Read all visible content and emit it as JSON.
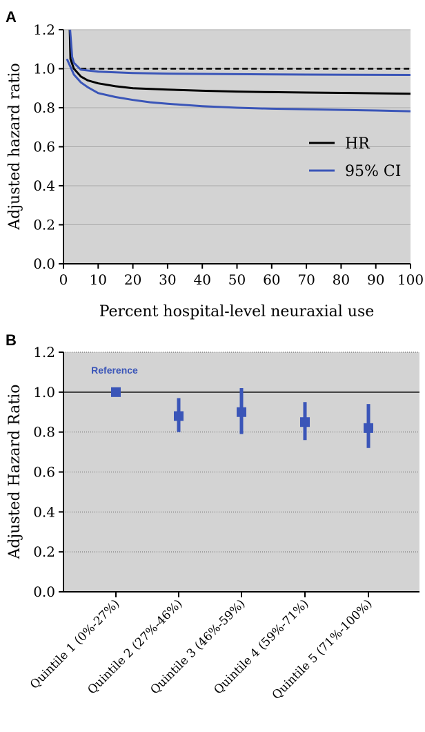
{
  "colors": {
    "plot_bg": "#d3d3d3",
    "grid": "#a9a9a9",
    "hr_line": "#000000",
    "ci_line": "#3a55b8",
    "marker": "#3a55b8",
    "reference_text": "#3a55b8"
  },
  "chart_data": [
    {
      "type": "line",
      "panel_label": "A",
      "title": "",
      "xlabel": "Percent hospital-level neuraxial use",
      "ylabel": "Adjusted hazard ratio",
      "xlim": [
        0,
        100
      ],
      "ylim": [
        0.0,
        1.2
      ],
      "x_ticks": [
        0,
        10,
        20,
        30,
        40,
        50,
        60,
        70,
        80,
        90,
        100
      ],
      "x_tick_labels": [
        "0",
        "10",
        "20",
        "30",
        "40",
        "50",
        "60",
        "70",
        "80",
        "90",
        "100"
      ],
      "y_ticks": [
        0.0,
        0.2,
        0.4,
        0.6,
        0.8,
        1.0,
        1.2
      ],
      "y_tick_labels": [
        "0.0",
        "0.2",
        "0.4",
        "0.6",
        "0.8",
        "1.0",
        "1.2"
      ],
      "grid": "horizontal",
      "legend_position": "right",
      "reference_line": 1.0,
      "series": [
        {
          "name": "HR",
          "role": "estimate",
          "x": [
            1.8,
            2,
            3,
            5,
            7,
            10,
            15,
            20,
            30,
            40,
            50,
            60,
            70,
            80,
            90,
            100
          ],
          "y": [
            1.2,
            1.05,
            1.0,
            0.96,
            0.94,
            0.925,
            0.91,
            0.9,
            0.893,
            0.887,
            0.883,
            0.88,
            0.878,
            0.876,
            0.874,
            0.872
          ]
        },
        {
          "name": "95% CI",
          "role": "upper",
          "x": [
            1.9,
            2.5,
            3,
            5,
            10,
            20,
            30,
            50,
            70,
            100
          ],
          "y": [
            1.2,
            1.06,
            1.03,
            0.995,
            0.985,
            0.978,
            0.975,
            0.972,
            0.97,
            0.968
          ]
        },
        {
          "name": "95% CI",
          "role": "lower",
          "x": [
            1,
            2,
            3,
            5,
            7,
            10,
            15,
            20,
            25,
            30,
            40,
            50,
            60,
            70,
            80,
            90,
            100
          ],
          "y": [
            1.05,
            1.01,
            0.97,
            0.93,
            0.905,
            0.875,
            0.855,
            0.84,
            0.828,
            0.82,
            0.808,
            0.8,
            0.795,
            0.792,
            0.789,
            0.786,
            0.782
          ]
        }
      ]
    },
    {
      "type": "scatter",
      "panel_label": "B",
      "title": "",
      "xlabel": "",
      "ylabel": "Adjusted Hazard Ratio",
      "ylim": [
        0.0,
        1.2
      ],
      "y_ticks": [
        0.0,
        0.2,
        0.4,
        0.6,
        0.8,
        1.0,
        1.2
      ],
      "y_tick_labels": [
        "0.0",
        "0.2",
        "0.4",
        "0.6",
        "0.8",
        "1.0",
        "1.2"
      ],
      "grid": "horizontal dotted",
      "reference_line": 1.0,
      "annotation": "Reference",
      "categories": [
        "Quintile 1 (0%-27%)",
        "Quintile 2 (27%-46%)",
        "Quintile 3 (46%-59%)",
        "Quintile 4 (59%-71%)",
        "Quintile 5 (71%-100%)"
      ],
      "values": [
        1.0,
        0.88,
        0.9,
        0.85,
        0.82
      ],
      "lower": [
        1.0,
        0.8,
        0.79,
        0.76,
        0.72
      ],
      "upper": [
        1.0,
        0.97,
        1.02,
        0.95,
        0.94
      ]
    }
  ]
}
